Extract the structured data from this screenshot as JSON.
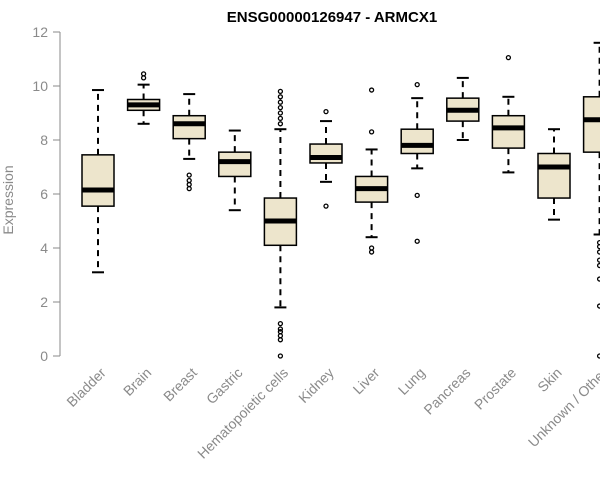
{
  "chart_data": {
    "type": "boxplot",
    "title": "ENSG00000126947 - ARMCX1",
    "xlabel": "",
    "ylabel": "Expression",
    "ylim": [
      0,
      12
    ],
    "yticks": [
      0,
      2,
      4,
      6,
      8,
      10,
      12
    ],
    "box_fill": "#ede5cc",
    "median_color": "#000000",
    "axis_color": "#8a8a8a",
    "categories": [
      "Bladder",
      "Brain",
      "Breast",
      "Gastric",
      "Hematopoietic cells",
      "Kidney",
      "Liver",
      "Lung",
      "Pancreas",
      "Prostate",
      "Skin",
      "Unknown / Other"
    ],
    "boxes": [
      {
        "name": "Bladder",
        "min": 3.1,
        "q1": 5.55,
        "median": 6.15,
        "q3": 7.45,
        "max": 9.85,
        "outliers": []
      },
      {
        "name": "Brain",
        "min": 8.6,
        "q1": 9.1,
        "median": 9.3,
        "q3": 9.5,
        "max": 10.05,
        "outliers": [
          10.3,
          10.45
        ]
      },
      {
        "name": "Breast",
        "min": 7.3,
        "q1": 8.05,
        "median": 8.6,
        "q3": 8.9,
        "max": 9.7,
        "outliers": [
          6.2,
          6.35,
          6.5,
          6.7
        ]
      },
      {
        "name": "Gastric",
        "min": 5.4,
        "q1": 6.65,
        "median": 7.2,
        "q3": 7.55,
        "max": 8.35,
        "outliers": []
      },
      {
        "name": "Hematopoietic cells",
        "min": 1.8,
        "q1": 4.1,
        "median": 5.0,
        "q3": 5.85,
        "max": 8.4,
        "outliers": [
          0.0,
          0.6,
          0.75,
          0.9,
          1.0,
          1.2,
          8.6,
          8.8,
          9.0,
          9.2,
          9.4,
          9.6,
          9.8
        ]
      },
      {
        "name": "Kidney",
        "min": 6.45,
        "q1": 7.15,
        "median": 7.35,
        "q3": 7.85,
        "max": 8.7,
        "outliers": [
          5.55,
          9.05
        ]
      },
      {
        "name": "Liver",
        "min": 4.4,
        "q1": 5.7,
        "median": 6.2,
        "q3": 6.65,
        "max": 7.65,
        "outliers": [
          3.85,
          4.0,
          8.3,
          9.85
        ]
      },
      {
        "name": "Lung",
        "min": 6.95,
        "q1": 7.5,
        "median": 7.8,
        "q3": 8.4,
        "max": 9.55,
        "outliers": [
          4.25,
          5.95,
          10.05
        ]
      },
      {
        "name": "Pancreas",
        "min": 8.0,
        "q1": 8.7,
        "median": 9.1,
        "q3": 9.55,
        "max": 10.3,
        "outliers": []
      },
      {
        "name": "Prostate",
        "min": 6.8,
        "q1": 7.7,
        "median": 8.45,
        "q3": 8.9,
        "max": 9.6,
        "outliers": [
          11.05
        ]
      },
      {
        "name": "Skin",
        "min": 5.05,
        "q1": 5.85,
        "median": 7.0,
        "q3": 7.5,
        "max": 8.4,
        "outliers": []
      },
      {
        "name": "Unknown / Other",
        "min": 4.5,
        "q1": 7.55,
        "median": 8.75,
        "q3": 9.6,
        "max": 11.6,
        "outliers": [
          0.0,
          1.85,
          2.85,
          3.35,
          3.55,
          3.85,
          4.05,
          4.2
        ]
      }
    ]
  }
}
